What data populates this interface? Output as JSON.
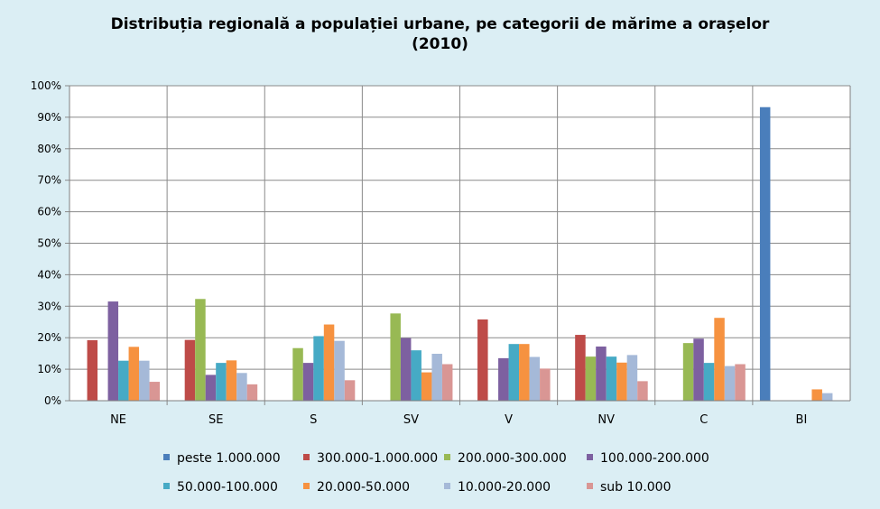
{
  "chart_data": {
    "type": "bar",
    "title": "Distribuția regională a populației urbane, pe categorii de mărime a orașelor",
    "subtitle": "(2010)",
    "categories": [
      "NE",
      "SE",
      "S",
      "SV",
      "V",
      "NV",
      "C",
      "BI"
    ],
    "y_ticks": [
      "0%",
      "10%",
      "20%",
      "30%",
      "40%",
      "50%",
      "60%",
      "70%",
      "80%",
      "90%",
      "100%"
    ],
    "ylim": [
      0,
      100
    ],
    "grid": true,
    "legend_position": "bottom",
    "series": [
      {
        "name": "peste 1.000.000",
        "color": "#4a7ebb",
        "values": [
          0,
          0,
          0,
          0,
          0,
          0,
          0,
          93.2
        ]
      },
      {
        "name": "300.000-1.000.000",
        "color": "#be4b48",
        "values": [
          19.2,
          19.3,
          0,
          0,
          25.8,
          20.9,
          0,
          0
        ]
      },
      {
        "name": "200.000-300.000",
        "color": "#98b954",
        "values": [
          0,
          32.3,
          16.7,
          27.7,
          0,
          14.0,
          18.3,
          0
        ]
      },
      {
        "name": "100.000-200.000",
        "color": "#7d60a0",
        "values": [
          31.5,
          8.2,
          12.0,
          19.9,
          13.5,
          17.2,
          19.7,
          0
        ]
      },
      {
        "name": "50.000-100.000",
        "color": "#46aac5",
        "values": [
          12.7,
          12.0,
          20.5,
          16.0,
          18.0,
          14.0,
          12.0,
          0
        ]
      },
      {
        "name": "20.000-50.000",
        "color": "#f69240",
        "values": [
          17.1,
          12.8,
          24.2,
          9.0,
          18.0,
          12.1,
          26.3,
          3.6
        ]
      },
      {
        "name": "10.000-20.000",
        "color": "#a5b9d8",
        "values": [
          12.7,
          8.8,
          19.0,
          14.9,
          13.9,
          14.5,
          11.0,
          2.4
        ]
      },
      {
        "name": "sub 10.000",
        "color": "#d99694",
        "values": [
          6.0,
          5.2,
          6.5,
          11.6,
          10.2,
          6.2,
          11.6,
          0
        ]
      }
    ]
  }
}
